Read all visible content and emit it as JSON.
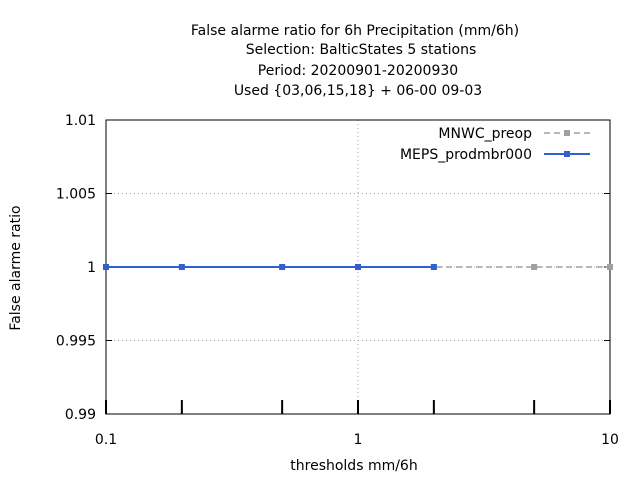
{
  "chart_data": {
    "type": "line",
    "title_lines": [
      "False alarme ratio  for 6h Precipitation (mm/6h)",
      "Selection: BalticStates      5 stations",
      "Period: 20200901-20200930",
      "Used {03,06,15,18} + 06-00 09-03"
    ],
    "xlabel": "thresholds mm/6h",
    "ylabel": "False alarme ratio",
    "xscale": "log",
    "xlim": [
      0.1,
      10
    ],
    "ylim": [
      0.99,
      1.01
    ],
    "x_ticks": [
      0.1,
      1,
      10
    ],
    "x_tick_labels": [
      "0.1",
      "1",
      "10"
    ],
    "y_ticks": [
      0.99,
      0.995,
      1,
      1.005,
      1.01
    ],
    "y_tick_labels": [
      "0.99",
      "0.995",
      "1",
      "1.005",
      "1.01"
    ],
    "x_mark_ticks": [
      0.1,
      0.2,
      0.5,
      1,
      2,
      5,
      10
    ],
    "grid": true,
    "legend_position": "top-right",
    "series": [
      {
        "name": "MNWC_preop",
        "color": "#a0a0a0",
        "style": "dashed",
        "x": [
          0.1,
          0.2,
          0.5,
          1,
          2,
          5,
          10
        ],
        "values": [
          1,
          1,
          1,
          1,
          1,
          1,
          1
        ]
      },
      {
        "name": "MEPS_prodmbr000",
        "color": "#3060d0",
        "style": "solid",
        "x": [
          0.1,
          0.2,
          0.5,
          1,
          2
        ],
        "values": [
          1,
          1,
          1,
          1,
          1
        ]
      }
    ]
  }
}
